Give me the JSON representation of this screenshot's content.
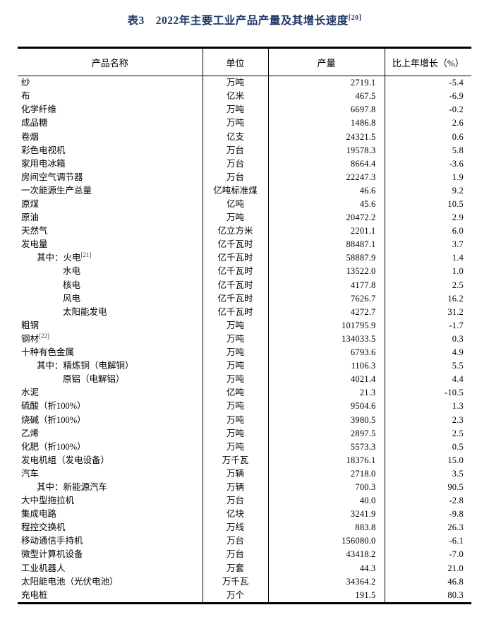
{
  "title": {
    "text": "表3　2022年主要工业产品产量及其增长速度",
    "superscript": "[20]"
  },
  "colors": {
    "title_accent": "#1f3864",
    "footnote_ref": "#1f3864",
    "text": "#000000",
    "border": "#000000"
  },
  "table": {
    "columns": [
      "产品名称",
      "单位",
      "产量",
      "比上年增长（%）"
    ],
    "rows": [
      {
        "name": "纱",
        "sup": "",
        "indent": 0,
        "unit": "万吨",
        "output": "2719.1",
        "growth": "-5.4"
      },
      {
        "name": "布",
        "sup": "",
        "indent": 0,
        "unit": "亿米",
        "output": "467.5",
        "growth": "-6.9"
      },
      {
        "name": "化学纤维",
        "sup": "",
        "indent": 0,
        "unit": "万吨",
        "output": "6697.8",
        "growth": "-0.2"
      },
      {
        "name": "成品糖",
        "sup": "",
        "indent": 0,
        "unit": "万吨",
        "output": "1486.8",
        "growth": "2.6"
      },
      {
        "name": "卷烟",
        "sup": "",
        "indent": 0,
        "unit": "亿支",
        "output": "24321.5",
        "growth": "0.6"
      },
      {
        "name": "彩色电视机",
        "sup": "",
        "indent": 0,
        "unit": "万台",
        "output": "19578.3",
        "growth": "5.8"
      },
      {
        "name": "家用电冰箱",
        "sup": "",
        "indent": 0,
        "unit": "万台",
        "output": "8664.4",
        "growth": "-3.6"
      },
      {
        "name": "房间空气调节器",
        "sup": "",
        "indent": 0,
        "unit": "万台",
        "output": "22247.3",
        "growth": "1.9"
      },
      {
        "name": "一次能源生产总量",
        "sup": "",
        "indent": 0,
        "unit": "亿吨标准煤",
        "output": "46.6",
        "growth": "9.2"
      },
      {
        "name": "原煤",
        "sup": "",
        "indent": 0,
        "unit": "亿吨",
        "output": "45.6",
        "growth": "10.5"
      },
      {
        "name": "原油",
        "sup": "",
        "indent": 0,
        "unit": "万吨",
        "output": "20472.2",
        "growth": "2.9"
      },
      {
        "name": "天然气",
        "sup": "",
        "indent": 0,
        "unit": "亿立方米",
        "output": "2201.1",
        "growth": "6.0"
      },
      {
        "name": "发电量",
        "sup": "",
        "indent": 0,
        "unit": "亿千瓦时",
        "output": "88487.1",
        "growth": "3.7"
      },
      {
        "name": "其中：火电",
        "sup": "[21]",
        "indent": 1,
        "unit": "亿千瓦时",
        "output": "58887.9",
        "growth": "1.4"
      },
      {
        "name": "水电",
        "sup": "",
        "indent": 2,
        "unit": "亿千瓦时",
        "output": "13522.0",
        "growth": "1.0"
      },
      {
        "name": "核电",
        "sup": "",
        "indent": 2,
        "unit": "亿千瓦时",
        "output": "4177.8",
        "growth": "2.5"
      },
      {
        "name": "风电",
        "sup": "",
        "indent": 2,
        "unit": "亿千瓦时",
        "output": "7626.7",
        "growth": "16.2"
      },
      {
        "name": "太阳能发电",
        "sup": "",
        "indent": 2,
        "unit": "亿千瓦时",
        "output": "4272.7",
        "growth": "31.2"
      },
      {
        "name": "粗钢",
        "sup": "",
        "indent": 0,
        "unit": "万吨",
        "output": "101795.9",
        "growth": "-1.7"
      },
      {
        "name": "钢材",
        "sup": "[22]",
        "indent": 0,
        "unit": "万吨",
        "output": "134033.5",
        "growth": "0.3"
      },
      {
        "name": "十种有色金属",
        "sup": "",
        "indent": 0,
        "unit": "万吨",
        "output": "6793.6",
        "growth": "4.9"
      },
      {
        "name": "其中：精炼铜（电解铜）",
        "sup": "",
        "indent": 1,
        "unit": "万吨",
        "output": "1106.3",
        "growth": "5.5"
      },
      {
        "name": "原铝（电解铝）",
        "sup": "",
        "indent": 2,
        "unit": "万吨",
        "output": "4021.4",
        "growth": "4.4"
      },
      {
        "name": "水泥",
        "sup": "",
        "indent": 0,
        "unit": "亿吨",
        "output": "21.3",
        "growth": "-10.5"
      },
      {
        "name": "硫酸（折100%）",
        "sup": "",
        "indent": 0,
        "unit": "万吨",
        "output": "9504.6",
        "growth": "1.3"
      },
      {
        "name": "烧碱（折100%）",
        "sup": "",
        "indent": 0,
        "unit": "万吨",
        "output": "3980.5",
        "growth": "2.3"
      },
      {
        "name": "乙烯",
        "sup": "",
        "indent": 0,
        "unit": "万吨",
        "output": "2897.5",
        "growth": "2.5"
      },
      {
        "name": "化肥（折100%）",
        "sup": "",
        "indent": 0,
        "unit": "万吨",
        "output": "5573.3",
        "growth": "0.5"
      },
      {
        "name": "发电机组（发电设备）",
        "sup": "",
        "indent": 0,
        "unit": "万千瓦",
        "output": "18376.1",
        "growth": "15.0"
      },
      {
        "name": "汽车",
        "sup": "",
        "indent": 0,
        "unit": "万辆",
        "output": "2718.0",
        "growth": "3.5"
      },
      {
        "name": "其中：新能源汽车",
        "sup": "",
        "indent": 1,
        "unit": "万辆",
        "output": "700.3",
        "growth": "90.5"
      },
      {
        "name": "大中型拖拉机",
        "sup": "",
        "indent": 0,
        "unit": "万台",
        "output": "40.0",
        "growth": "-2.8"
      },
      {
        "name": "集成电路",
        "sup": "",
        "indent": 0,
        "unit": "亿块",
        "output": "3241.9",
        "growth": "-9.8"
      },
      {
        "name": "程控交换机",
        "sup": "",
        "indent": 0,
        "unit": "万线",
        "output": "883.8",
        "growth": "26.3"
      },
      {
        "name": "移动通信手持机",
        "sup": "",
        "indent": 0,
        "unit": "万台",
        "output": "156080.0",
        "growth": "-6.1"
      },
      {
        "name": "微型计算机设备",
        "sup": "",
        "indent": 0,
        "unit": "万台",
        "output": "43418.2",
        "growth": "-7.0"
      },
      {
        "name": "工业机器人",
        "sup": "",
        "indent": 0,
        "unit": "万套",
        "output": "44.3",
        "growth": "21.0"
      },
      {
        "name": "太阳能电池（光伏电池）",
        "sup": "",
        "indent": 0,
        "unit": "万千瓦",
        "output": "34364.2",
        "growth": "46.8"
      },
      {
        "name": "充电桩",
        "sup": "",
        "indent": 0,
        "unit": "万个",
        "output": "191.5",
        "growth": "80.3"
      }
    ]
  }
}
